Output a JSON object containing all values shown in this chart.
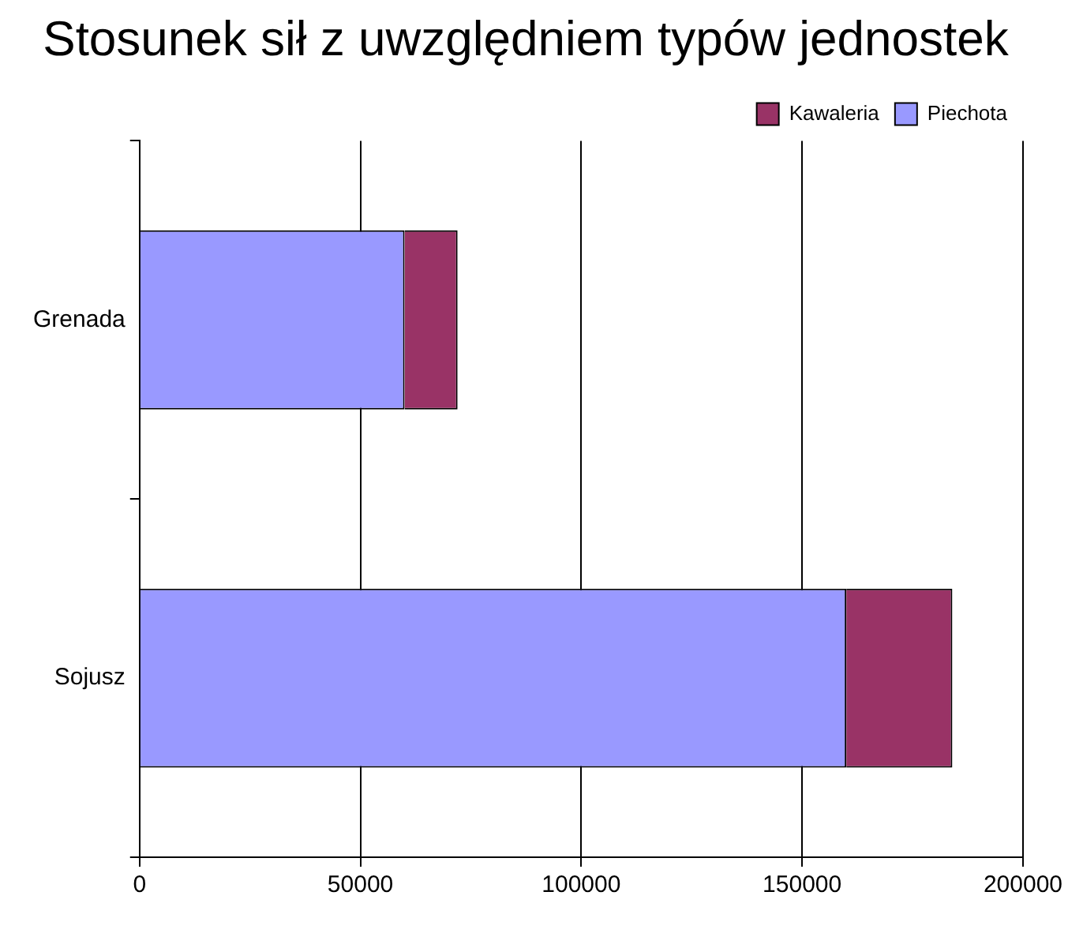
{
  "chart_data": {
    "type": "bar",
    "title": "Stosunek sił z uwzględniem typów jednostek",
    "orientation": "horizontal",
    "stacked": true,
    "categories": [
      "Grenada",
      "Sojusz"
    ],
    "series": [
      {
        "name": "Piechota",
        "color": "#9999ff",
        "values": [
          60000,
          160000
        ]
      },
      {
        "name": "Kawaleria",
        "color": "#993366",
        "values": [
          12000,
          24000
        ]
      }
    ],
    "xlim": [
      0,
      200000
    ],
    "xticks": [
      0,
      50000,
      100000,
      150000,
      200000
    ],
    "grid": "x",
    "legend": "top right"
  }
}
